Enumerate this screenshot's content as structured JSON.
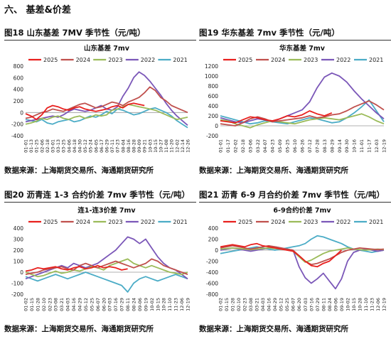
{
  "section": {
    "title": "六、   基差&价差"
  },
  "colors": {
    "2025": "#e8201e",
    "2024": "#c0504d",
    "2023": "#9bbb59",
    "2022": "#7b57b8",
    "2021": "#4bacc6"
  },
  "panels": [
    {
      "caption": "图18  山东基差 7MV  季节性（元/吨）",
      "source": "数据来源：上海期货交易所、海通期货研究所"
    },
    {
      "caption": "图19   华东基差 7mv  季节性（元/吨）",
      "source": "数据来源：上海期货交易所、海通期货研究所"
    },
    {
      "caption": "图20  沥青连 1-3 合约价差 7mv  季节性（元/吨）",
      "source": "数据来源：上海期货交易所、海通期货研究所"
    },
    {
      "caption": "图21   沥青 6-9 月合约价差 7mv  季节性（元/吨）",
      "source": "数据来源：上海期货交易所、海通期货研究所"
    }
  ],
  "chart_data": [
    {
      "type": "line",
      "title": "山东基差 7mv",
      "x": [
        "01-01",
        "01-13",
        "01-25",
        "02-06",
        "02-18",
        "03-01",
        "03-13",
        "03-25",
        "04-06",
        "04-18",
        "04-30",
        "05-12",
        "05-24",
        "06-05",
        "06-17",
        "06-29",
        "07-11",
        "07-23",
        "08-04",
        "08-16",
        "08-28",
        "09-09",
        "09-21",
        "10-03",
        "10-15",
        "10-27",
        "11-08",
        "11-20",
        "12-02",
        "12-14",
        "12-26"
      ],
      "ylim": [
        -400,
        800
      ],
      "yticks": [
        -400,
        -200,
        0,
        200,
        400,
        600,
        800
      ],
      "series": [
        {
          "name": "2025",
          "values": [
            -20,
            -60,
            -120,
            -40,
            80,
            120,
            100,
            60,
            40,
            80,
            100,
            60,
            40,
            20,
            40,
            60,
            100,
            120,
            80,
            140,
            160,
            140,
            120,
            null,
            null,
            null,
            null,
            null,
            null,
            null,
            null
          ]
        },
        {
          "name": "2024",
          "values": [
            -100,
            -80,
            -40,
            0,
            20,
            60,
            40,
            20,
            60,
            100,
            140,
            160,
            120,
            80,
            100,
            140,
            180,
            160,
            120,
            180,
            220,
            260,
            340,
            440,
            380,
            260,
            200,
            120,
            80,
            40,
            0
          ]
        },
        {
          "name": "2023",
          "values": [
            -200,
            -180,
            -150,
            -100,
            -120,
            -80,
            -60,
            -100,
            -120,
            -80,
            -60,
            -100,
            -80,
            -40,
            -60,
            -40,
            40,
            60,
            100,
            140,
            120,
            100,
            80,
            60,
            40,
            0,
            -40,
            -80,
            -120,
            -100,
            -80
          ]
        },
        {
          "name": "2022",
          "values": [
            -160,
            -140,
            -120,
            -100,
            -80,
            -60,
            -80,
            -40,
            20,
            60,
            40,
            20,
            40,
            80,
            120,
            60,
            40,
            100,
            280,
            420,
            600,
            700,
            640,
            540,
            420,
            300,
            160,
            40,
            -60,
            -140,
            -220
          ]
        },
        {
          "name": "2021",
          "values": [
            -120,
            -140,
            -160,
            -120,
            -180,
            -200,
            -160,
            -140,
            -120,
            -160,
            -140,
            -100,
            -60,
            -80,
            -40,
            20,
            -20,
            60,
            40,
            0,
            -40,
            -20,
            20,
            60,
            80,
            40,
            0,
            -60,
            -140,
            -200,
            -260
          ]
        }
      ]
    },
    {
      "type": "line",
      "title": "华东基差 7mv",
      "x": [
        "01-01",
        "01-17",
        "02-02",
        "02-18",
        "03-06",
        "03-22",
        "04-07",
        "04-23",
        "05-09",
        "05-25",
        "06-10",
        "06-26",
        "07-12",
        "07-28",
        "08-13",
        "08-29",
        "09-14",
        "09-30",
        "10-16",
        "11-01",
        "11-17",
        "12-03",
        "12-19"
      ],
      "ylim": [
        -200,
        1200
      ],
      "yticks": [
        -200,
        0,
        200,
        400,
        600,
        800,
        1000,
        1200
      ],
      "series": [
        {
          "name": "2025",
          "values": [
            100,
            80,
            60,
            120,
            180,
            160,
            120,
            100,
            140,
            200,
            180,
            220,
            300,
            240,
            200,
            260,
            null,
            null,
            null,
            null,
            null,
            null,
            null
          ]
        },
        {
          "name": "2024",
          "values": [
            40,
            20,
            0,
            60,
            140,
            180,
            140,
            80,
            100,
            120,
            140,
            160,
            200,
            160,
            180,
            220,
            240,
            300,
            380,
            440,
            500,
            420,
            320
          ]
        },
        {
          "name": "2023",
          "values": [
            120,
            100,
            40,
            0,
            -40,
            20,
            60,
            100,
            80,
            60,
            40,
            80,
            120,
            140,
            160,
            140,
            120,
            160,
            200,
            240,
            180,
            100,
            40
          ]
        },
        {
          "name": "2022",
          "values": [
            160,
            120,
            80,
            60,
            100,
            140,
            120,
            80,
            140,
            200,
            260,
            320,
            480,
            760,
            980,
            1060,
            1000,
            880,
            700,
            540,
            400,
            260,
            140
          ]
        },
        {
          "name": "2021",
          "values": [
            200,
            160,
            120,
            80,
            40,
            60,
            100,
            80,
            60,
            40,
            80,
            120,
            160,
            140,
            100,
            60,
            80,
            160,
            260,
            380,
            520,
            300,
            80
          ]
        }
      ]
    },
    {
      "type": "line",
      "title": "连1-连3价差 7mv",
      "x": [
        "01-02",
        "01-15",
        "01-28",
        "02-10",
        "02-23",
        "03-08",
        "03-21",
        "04-03",
        "04-16",
        "04-29",
        "05-12",
        "05-25",
        "06-07",
        "06-20",
        "07-03",
        "07-16",
        "07-29",
        "08-11",
        "08-24",
        "09-06",
        "09-19",
        "10-02",
        "10-15",
        "10-28",
        "11-10",
        "11-23",
        "12-06",
        "12-19"
      ],
      "ylim": [
        -200,
        400
      ],
      "yticks": [
        -200,
        -100,
        0,
        100,
        200,
        300,
        400
      ],
      "series": [
        {
          "name": "2025",
          "values": [
            10,
            20,
            40,
            30,
            40,
            50,
            30,
            20,
            40,
            50,
            30,
            40,
            60,
            40,
            50,
            40,
            20,
            30,
            null,
            null,
            null,
            null,
            null,
            null,
            null,
            null,
            null,
            null
          ]
        },
        {
          "name": "2024",
          "values": [
            -20,
            -10,
            0,
            20,
            30,
            40,
            50,
            30,
            20,
            60,
            80,
            60,
            40,
            60,
            80,
            100,
            80,
            60,
            40,
            60,
            80,
            120,
            100,
            60,
            40,
            20,
            0,
            -20
          ]
        },
        {
          "name": "2023",
          "values": [
            0,
            -20,
            -40,
            -30,
            -10,
            10,
            -10,
            0,
            20,
            10,
            30,
            50,
            40,
            20,
            60,
            80,
            100,
            120,
            80,
            60,
            40,
            60,
            40,
            20,
            0,
            -10,
            -20,
            0
          ]
        },
        {
          "name": "2022",
          "values": [
            -60,
            -40,
            -20,
            0,
            20,
            40,
            60,
            40,
            80,
            60,
            40,
            60,
            80,
            120,
            160,
            200,
            260,
            320,
            300,
            260,
            300,
            220,
            140,
            80,
            40,
            20,
            -20,
            -60
          ]
        },
        {
          "name": "2021",
          "values": [
            -40,
            -60,
            -80,
            -60,
            -40,
            -20,
            -40,
            -60,
            -40,
            -20,
            0,
            -20,
            -40,
            -60,
            -80,
            -100,
            -120,
            -180,
            -100,
            -60,
            -40,
            -60,
            -80,
            -60,
            -40,
            -20,
            -40,
            -60
          ]
        }
      ]
    },
    {
      "type": "line",
      "title": "6-9合约价差 7mv",
      "x": [
        "01-02",
        "01-15",
        "01-28",
        "02-10",
        "02-23",
        "03-08",
        "03-21",
        "04-03",
        "04-16",
        "04-29",
        "05-12",
        "05-25",
        "06-07",
        "06-20",
        "07-03",
        "07-16",
        "07-29",
        "08-11",
        "08-24",
        "09-06",
        "09-19",
        "10-02",
        "10-15",
        "10-28",
        "11-10",
        "11-23",
        "12-06",
        "12-19"
      ],
      "ylim": [
        -800,
        400
      ],
      "yticks": [
        -800,
        -600,
        -400,
        -200,
        0,
        200,
        400
      ],
      "series": [
        {
          "name": "2025",
          "values": [
            60,
            80,
            100,
            80,
            60,
            100,
            120,
            80,
            60,
            40,
            20,
            0,
            -20,
            -100,
            -200,
            -280,
            -300,
            -240,
            -200,
            -100,
            0,
            null,
            null,
            null,
            null,
            null,
            null,
            null
          ]
        },
        {
          "name": "2024",
          "values": [
            40,
            60,
            80,
            60,
            40,
            20,
            40,
            60,
            80,
            60,
            40,
            20,
            0,
            -100,
            -200,
            -260,
            -240,
            -200,
            -160,
            -100,
            -40,
            0,
            20,
            40,
            30,
            20,
            10,
            20
          ]
        },
        {
          "name": "2023",
          "values": [
            20,
            30,
            40,
            30,
            20,
            10,
            20,
            30,
            40,
            30,
            20,
            10,
            -20,
            -120,
            -220,
            -180,
            -120,
            -60,
            -20,
            0,
            20,
            40,
            20,
            10,
            0,
            10,
            20,
            10
          ]
        },
        {
          "name": "2022",
          "values": [
            0,
            20,
            40,
            20,
            0,
            -20,
            0,
            20,
            40,
            60,
            40,
            20,
            0,
            -300,
            -500,
            -600,
            -520,
            -420,
            -560,
            -700,
            -520,
            -200,
            -40,
            0,
            20,
            0,
            -20,
            0
          ]
        },
        {
          "name": "2021",
          "values": [
            -60,
            -40,
            -20,
            0,
            20,
            40,
            60,
            40,
            20,
            0,
            20,
            40,
            60,
            80,
            120,
            200,
            260,
            240,
            200,
            160,
            120,
            60,
            20,
            0,
            -20,
            -40,
            -20,
            0
          ]
        }
      ]
    }
  ]
}
